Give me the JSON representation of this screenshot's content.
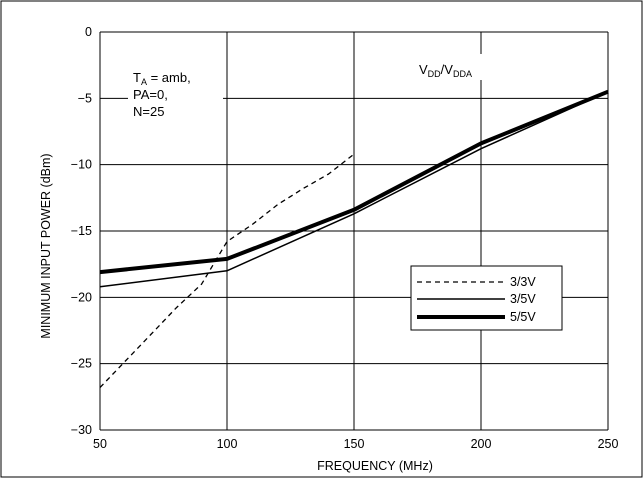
{
  "chart_data": {
    "type": "line",
    "xlabel": "FREQUENCY (MHz)",
    "ylabel": "MINIMUM INPUT POWER (dBm)",
    "xlim": [
      50,
      250
    ],
    "ylim": [
      -30,
      0
    ],
    "x_ticks": [
      "50",
      "100",
      "150",
      "200",
      "250"
    ],
    "y_ticks": [
      "0",
      "−5",
      "−10",
      "−15",
      "−20",
      "−25",
      "−30"
    ],
    "grid": true,
    "legend_position": "right",
    "annotation": {
      "ta_prefix": "T",
      "ta_sub": "A",
      "ta_suffix": " = amb,",
      "line2": "PA=0,",
      "line3": "N=25"
    },
    "supply_label": {
      "vdd_v": "V",
      "vdd_sub": "DD",
      "slash": "/V",
      "vdda_sub": "DDA"
    },
    "series": [
      {
        "name": "3/3V",
        "style": "dashed",
        "color": "#000000",
        "points": [
          [
            50,
            -26.8
          ],
          [
            60,
            -24.8
          ],
          [
            70,
            -22.8
          ],
          [
            80,
            -20.8
          ],
          [
            90,
            -19
          ],
          [
            100,
            -15.8
          ],
          [
            110,
            -14.5
          ],
          [
            120,
            -13
          ],
          [
            130,
            -11.8
          ],
          [
            140,
            -10.7
          ],
          [
            150,
            -9.2
          ]
        ]
      },
      {
        "name": "3/5V",
        "style": "thin",
        "color": "#000000",
        "points": [
          [
            50,
            -19.2
          ],
          [
            100,
            -18
          ],
          [
            150,
            -13.7
          ],
          [
            200,
            -8.8
          ],
          [
            250,
            -4.5
          ]
        ]
      },
      {
        "name": "5/5V",
        "style": "thick",
        "color": "#000000",
        "points": [
          [
            50,
            -18.1
          ],
          [
            100,
            -17.1
          ],
          [
            150,
            -13.4
          ],
          [
            200,
            -8.4
          ],
          [
            250,
            -4.5
          ]
        ]
      }
    ]
  }
}
